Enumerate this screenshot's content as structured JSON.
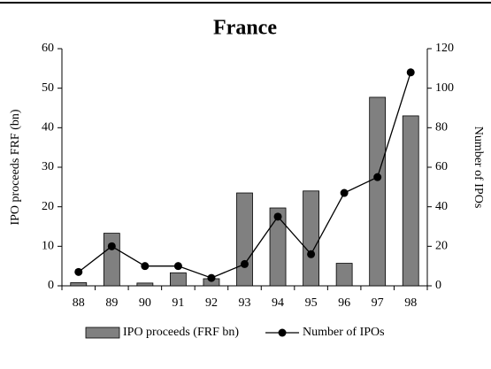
{
  "chart_data": {
    "type": "combo",
    "title": "France",
    "categories": [
      "88",
      "89",
      "90",
      "91",
      "92",
      "93",
      "94",
      "95",
      "96",
      "97",
      "98"
    ],
    "ylabel": "IPO proceeds FRF (bn)",
    "y2label": "Number of IPOs",
    "ylim": [
      0,
      60
    ],
    "yticks": [
      0,
      10,
      20,
      30,
      40,
      50,
      60
    ],
    "y2lim": [
      0,
      120
    ],
    "y2ticks": [
      0,
      20,
      40,
      60,
      80,
      100,
      120
    ],
    "legend": "bottom",
    "series": [
      {
        "name": "IPO proceeds (FRF bn)",
        "type": "bar",
        "color": "#808080",
        "values": [
          0.8,
          13.3,
          0.7,
          3.3,
          1.8,
          23.5,
          19.7,
          24,
          5.7,
          47.7,
          43
        ]
      },
      {
        "name": "Number of IPOs",
        "type": "line",
        "axis": "y2",
        "color": "#000000",
        "values": [
          7,
          20,
          10,
          10,
          4,
          11,
          35,
          16,
          47,
          55,
          108
        ]
      }
    ]
  }
}
